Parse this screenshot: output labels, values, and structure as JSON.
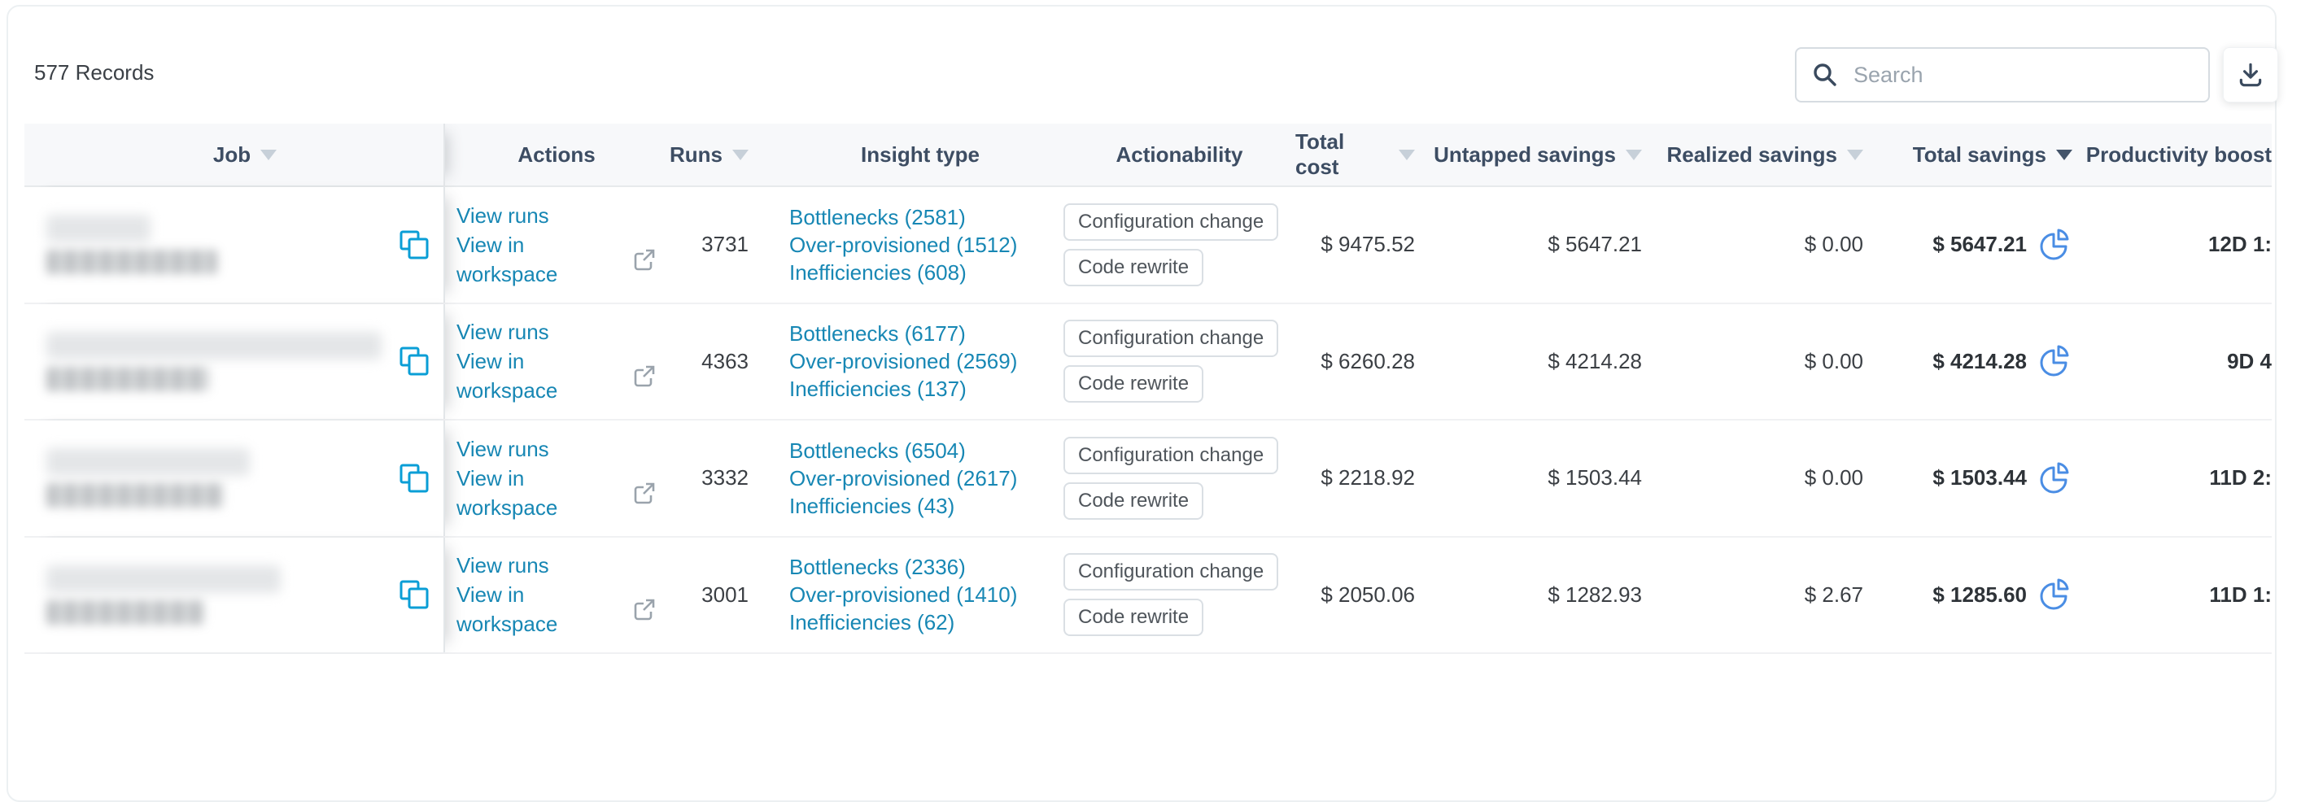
{
  "toolbar": {
    "records": "577 Records",
    "search_placeholder": "Search"
  },
  "colors": {
    "link_blue": "#1787b4",
    "copy_icon_blue": "#0a9ed6",
    "pie_icon_blue": "#4a8de4",
    "header_text": "#3d4d63",
    "active_sort_arrow": "#44546a",
    "inactive_sort_arrow": "#c7d0d9",
    "header_background": "#f7f8fa"
  },
  "icons": {
    "search": "magnifier-icon",
    "download": "download-icon",
    "copy": "copy-icon",
    "external_link": "external-link-icon",
    "savings_breakdown": "pie-chart-icon",
    "sort": "sort-arrow-icon"
  },
  "table": {
    "action_links": {
      "view_runs": "View runs",
      "view_in_workspace": "View in workspace"
    },
    "columns": [
      {
        "id": "job",
        "label": "Job",
        "sort": "inactive"
      },
      {
        "id": "actions",
        "label": "Actions",
        "sort": "none"
      },
      {
        "id": "runs",
        "label": "Runs",
        "sort": "inactive"
      },
      {
        "id": "insight_type",
        "label": "Insight type",
        "sort": "none"
      },
      {
        "id": "actionability",
        "label": "Actionability",
        "sort": "none"
      },
      {
        "id": "total_cost",
        "label": "Total cost",
        "sort": "inactive"
      },
      {
        "id": "untapped_savings",
        "label": "Untapped savings",
        "sort": "inactive"
      },
      {
        "id": "realized_savings",
        "label": "Realized savings",
        "sort": "inactive"
      },
      {
        "id": "total_savings",
        "label": "Total savings",
        "sort": "active"
      },
      {
        "id": "productivity_boost",
        "label": "Productivity boost",
        "sort": "none"
      }
    ],
    "rows": [
      {
        "job_redacted": true,
        "runs": "3731",
        "insights": [
          "Bottlenecks (2581)",
          "Over-provisioned (1512)",
          "Inefficiencies (608)"
        ],
        "actionability": [
          "Configuration change",
          "Code rewrite"
        ],
        "total_cost": "$ 9475.52",
        "untapped_savings": "$ 5647.21",
        "realized_savings": "$ 0.00",
        "total_savings": "$ 5647.21",
        "productivity_boost": "12D 1:"
      },
      {
        "job_redacted": true,
        "runs": "4363",
        "insights": [
          "Bottlenecks (6177)",
          "Over-provisioned (2569)",
          "Inefficiencies (137)"
        ],
        "actionability": [
          "Configuration change",
          "Code rewrite"
        ],
        "total_cost": "$ 6260.28",
        "untapped_savings": "$ 4214.28",
        "realized_savings": "$ 0.00",
        "total_savings": "$ 4214.28",
        "productivity_boost": "9D 4"
      },
      {
        "job_redacted": true,
        "runs": "3332",
        "insights": [
          "Bottlenecks (6504)",
          "Over-provisioned (2617)",
          "Inefficiencies (43)"
        ],
        "actionability": [
          "Configuration change",
          "Code rewrite"
        ],
        "total_cost": "$ 2218.92",
        "untapped_savings": "$ 1503.44",
        "realized_savings": "$ 0.00",
        "total_savings": "$ 1503.44",
        "productivity_boost": "11D 2:"
      },
      {
        "job_redacted": true,
        "runs": "3001",
        "insights": [
          "Bottlenecks (2336)",
          "Over-provisioned (1410)",
          "Inefficiencies (62)"
        ],
        "actionability": [
          "Configuration change",
          "Code rewrite"
        ],
        "total_cost": "$ 2050.06",
        "untapped_savings": "$ 1282.93",
        "realized_savings": "$ 2.67",
        "total_savings": "$ 1285.60",
        "productivity_boost": "11D 1:"
      }
    ]
  }
}
